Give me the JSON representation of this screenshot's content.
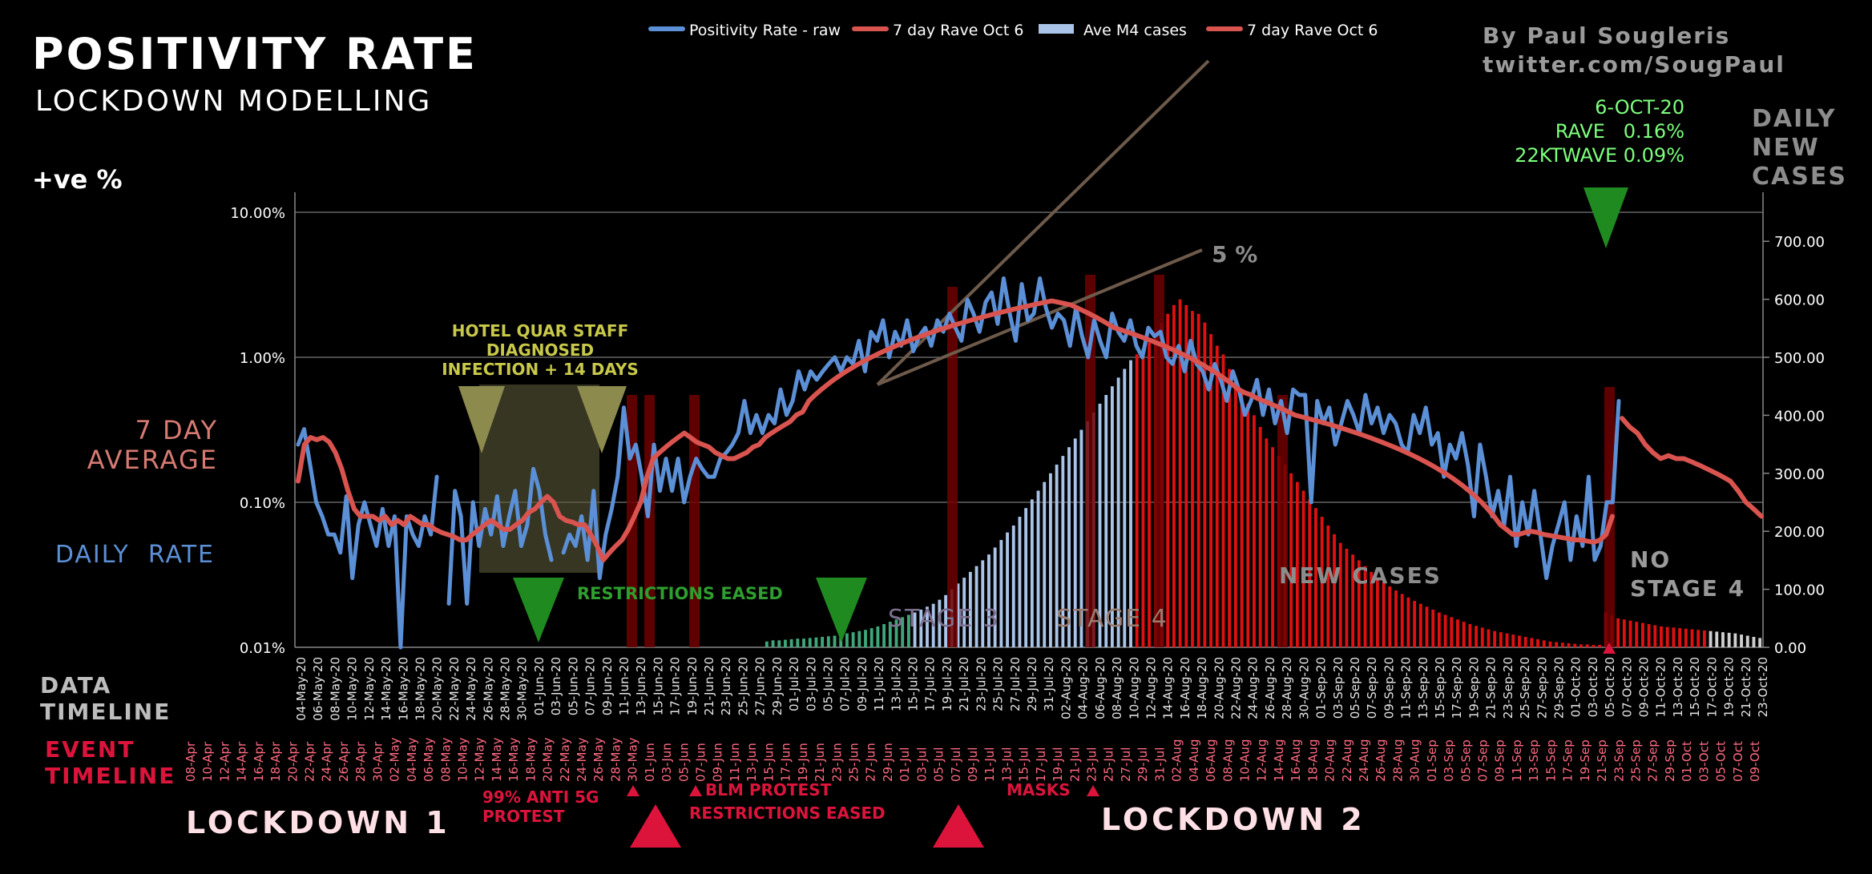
{
  "header": {
    "title": "POSITIVITY RATE",
    "subtitle": "LOCKDOWN MODELLING",
    "y_left_title": "+ve %",
    "credit_line1": "By Paul Sougleris",
    "credit_line2": "twitter.com/SougPaul"
  },
  "legend": [
    {
      "label": "Positivity Rate - raw",
      "color": "#5b8fd6"
    },
    {
      "label": "7 day Rave Oct 6",
      "color": "#d9534f"
    },
    {
      "label": "Ave M4 cases",
      "color": "#a9c4e8"
    },
    {
      "label": "7 day Rave Oct 6",
      "color": "#d9534f"
    }
  ],
  "side_labels": {
    "seven_day": [
      "7 DAY",
      "AVERAGE"
    ],
    "daily_rate": "DAILY  RATE",
    "daily_new_cases": [
      "DAILY",
      "NEW",
      "CASES"
    ],
    "data_timeline": [
      "DATA",
      "TIMELINE"
    ],
    "event_timeline": [
      "EVENT",
      "TIMELINE"
    ]
  },
  "stats": {
    "date": "6-OCT-20",
    "rave": "RAVE   0.16%",
    "ktwave": "22KTWAVE 0.09%"
  },
  "annotations": {
    "hotel": [
      "HOTEL QUAR STAFF",
      "DIAGNOSED",
      "INFECTION + 14 DAYS"
    ],
    "restrictions_eased": "RESTRICTIONS EASED",
    "stage3": "STAGE 3",
    "stage4": "STAGE 4",
    "new_cases": "NEW CASES",
    "no_stage4": [
      "NO",
      "STAGE 4"
    ],
    "five_pct": "5 %",
    "anti5g": [
      "99% ANTI 5G",
      "PROTEST"
    ],
    "blm": "BLM PROTEST",
    "restrictions_eased2": "RESTRICTIONS EASED",
    "masks": "MASKS",
    "lockdown1": "LOCKDOWN 1",
    "lockdown2": "LOCKDOWN 2"
  },
  "colors": {
    "blue": "#5b8fd6",
    "red": "#d9534f",
    "green": "#3fa67a",
    "olive": "#a8a53f",
    "event_red": "#dc143c",
    "grid": "#777777",
    "stats_green": "#7dff7d"
  },
  "chart_data": {
    "type": "line",
    "title": "POSITIVITY RATE",
    "ylabel_left": "+ve %",
    "ylabel_right": "DAILY NEW CASES",
    "y_left_scale": "log",
    "y_left_ticks": [
      "10.00%",
      "1.00%",
      "0.10%",
      "0.01%"
    ],
    "ylim_left": [
      0.01,
      10
    ],
    "y_right_ticks": [
      "700.00",
      "600.00",
      "500.00",
      "400.00",
      "300.00",
      "200.00",
      "100.00",
      "0.00"
    ],
    "ylim_right": [
      0,
      750
    ],
    "data_timeline_start": "04-May-20",
    "data_timeline": [
      "04-May-20",
      "06-May-20",
      "08-May-20",
      "10-May-20",
      "12-May-20",
      "14-May-20",
      "16-May-20",
      "18-May-20",
      "20-May-20",
      "22-May-20",
      "24-May-20",
      "26-May-20",
      "28-May-20",
      "30-May-20",
      "01-Jun-20",
      "03-Jun-20",
      "05-Jun-20",
      "07-Jun-20",
      "09-Jun-20",
      "11-Jun-20",
      "13-Jun-20",
      "15-Jun-20",
      "17-Jun-20",
      "19-Jun-20",
      "21-Jun-20",
      "23-Jun-20",
      "25-Jun-20",
      "27-Jun-20",
      "29-Jun-20",
      "01-Jul-20",
      "03-Jul-20",
      "05-Jul-20",
      "07-Jul-20",
      "09-Jul-20",
      "11-Jul-20",
      "13-Jul-20",
      "15-Jul-20",
      "17-Jul-20",
      "19-Jul-20",
      "21-Jul-20",
      "23-Jul-20",
      "25-Jul-20",
      "27-Jul-20",
      "29-Jul-20",
      "31-Jul-20",
      "02-Aug-20",
      "04-Aug-20",
      "06-Aug-20",
      "08-Aug-20",
      "10-Aug-20",
      "12-Aug-20",
      "14-Aug-20",
      "16-Aug-20",
      "18-Aug-20",
      "20-Aug-20",
      "22-Aug-20",
      "24-Aug-20",
      "26-Aug-20",
      "28-Aug-20",
      "30-Aug-20",
      "01-Sep-20",
      "03-Sep-20",
      "05-Sep-20",
      "07-Sep-20",
      "09-Sep-20",
      "11-Sep-20",
      "13-Sep-20",
      "15-Sep-20",
      "17-Sep-20",
      "19-Sep-20",
      "21-Sep-20",
      "23-Sep-20",
      "25-Sep-20",
      "27-Sep-20",
      "29-Sep-20",
      "01-Oct-20",
      "03-Oct-20",
      "05-Oct-20",
      "07-Oct-20",
      "09-Oct-20",
      "11-Oct-20",
      "13-Oct-20",
      "15-Oct-20",
      "17-Oct-20",
      "19-Oct-20",
      "21-Oct-20",
      "23-Oct-20"
    ],
    "event_timeline": [
      "08-Apr",
      "10-Apr",
      "12-Apr",
      "14-Apr",
      "16-Apr",
      "18-Apr",
      "20-Apr",
      "22-Apr",
      "24-Apr",
      "26-Apr",
      "28-Apr",
      "30-Apr",
      "02-May",
      "04-May",
      "06-May",
      "08-May",
      "10-May",
      "12-May",
      "14-May",
      "16-May",
      "18-May",
      "20-May",
      "22-May",
      "24-May",
      "26-May",
      "28-May",
      "30-May",
      "01-Jun",
      "03-Jun",
      "05-Jun",
      "07-Jun",
      "09-Jun",
      "11-Jun",
      "13-Jun",
      "15-Jun",
      "17-Jun",
      "19-Jun",
      "21-Jun",
      "23-Jun",
      "25-Jun",
      "27-Jun",
      "29-Jun",
      "01-Jul",
      "03-Jul",
      "05-Jul",
      "07-Jul",
      "09-Jul",
      "11-Jul",
      "13-Jul",
      "15-Jul",
      "17-Jul",
      "19-Jul",
      "21-Jul",
      "23-Jul",
      "25-Jul",
      "27-Jul",
      "29-Jul",
      "31-Jul",
      "02-Aug",
      "04-Aug",
      "06-Aug",
      "08-Aug",
      "10-Aug",
      "12-Aug",
      "14-Aug",
      "16-Aug",
      "18-Aug",
      "20-Aug",
      "22-Aug",
      "24-Aug",
      "26-Aug",
      "28-Aug",
      "30-Aug",
      "01-Sep",
      "03-Sep",
      "05-Sep",
      "07-Sep",
      "09-Sep",
      "11-Sep",
      "13-Sep",
      "15-Sep",
      "17-Sep",
      "19-Sep",
      "21-Sep",
      "23-Sep",
      "25-Sep",
      "27-Sep",
      "29-Sep",
      "01-Oct",
      "03-Oct",
      "05-Oct",
      "07-Oct",
      "09-Oct"
    ],
    "series": [
      {
        "name": "Positivity Rate - raw",
        "axis": "left",
        "values": [
          0.25,
          0.32,
          0.18,
          0.1,
          0.08,
          0.06,
          0.06,
          0.045,
          0.11,
          0.03,
          0.07,
          0.1,
          0.07,
          0.05,
          0.09,
          0.05,
          0.08,
          0.01,
          0.08,
          0.06,
          0.05,
          0.08,
          0.06,
          0.15,
          null,
          0.02,
          0.12,
          0.08,
          0.02,
          0.1,
          0.05,
          0.09,
          0.06,
          0.11,
          0.05,
          0.08,
          0.12,
          0.05,
          0.07,
          0.17,
          0.12,
          0.06,
          0.04,
          null,
          0.045,
          0.06,
          0.05,
          0.08,
          0.04,
          0.12,
          0.03,
          0.06,
          0.09,
          0.15,
          0.45,
          0.2,
          0.25,
          0.15,
          0.08,
          0.25,
          0.12,
          0.2,
          0.12,
          0.2,
          0.1,
          0.15,
          0.2,
          0.17,
          0.15,
          0.15,
          0.2,
          0.22,
          0.25,
          0.3,
          0.5,
          0.3,
          0.4,
          0.3,
          0.4,
          0.35,
          0.6,
          0.4,
          0.5,
          0.8,
          0.6,
          0.8,
          0.7,
          0.8,
          0.9,
          1.0,
          0.8,
          1.0,
          0.9,
          1.3,
          0.8,
          1.5,
          1.3,
          1.8,
          1.0,
          1.5,
          1.2,
          1.8,
          1.1,
          1.4,
          1.6,
          1.2,
          1.8,
          1.5,
          2.0,
          1.6,
          1.3,
          2.5,
          2.0,
          1.5,
          2.4,
          2.8,
          1.7,
          3.5,
          2.0,
          1.3,
          3.2,
          1.8,
          2.0,
          3.5,
          2.2,
          1.6,
          2.0,
          1.8,
          1.2,
          2.2,
          1.4,
          1.0,
          1.8,
          1.3,
          1.0,
          2.0,
          1.5,
          1.3,
          1.8,
          1.2,
          1.0,
          1.6,
          1.4,
          1.5,
          1.0,
          0.9,
          1.2,
          0.8,
          1.3,
          0.9,
          0.8,
          0.6,
          0.9,
          0.7,
          0.5,
          0.8,
          0.6,
          0.4,
          0.5,
          0.7,
          0.4,
          0.6,
          0.35,
          0.5,
          0.3,
          0.6,
          0.55,
          0.55,
          0.1,
          0.5,
          0.35,
          0.45,
          0.25,
          0.35,
          0.5,
          0.4,
          0.3,
          0.55,
          0.35,
          0.45,
          0.3,
          0.4,
          0.35,
          0.25,
          0.22,
          0.4,
          0.3,
          0.45,
          0.25,
          0.3,
          0.15,
          0.25,
          0.2,
          0.3,
          0.18,
          0.08,
          0.25,
          0.15,
          0.08,
          0.12,
          0.07,
          0.15,
          0.05,
          0.1,
          0.06,
          0.12,
          0.06,
          0.03,
          0.05,
          0.07,
          0.1,
          0.04,
          0.08,
          0.05,
          0.15,
          0.04,
          0.05,
          0.1,
          0.1,
          0.5
        ]
      },
      {
        "name": "7 day Rave Oct 6",
        "axis": "left",
        "values": [
          0.14,
          0.25,
          0.28,
          0.27,
          0.28,
          0.26,
          0.22,
          0.17,
          0.12,
          0.09,
          0.08,
          0.08,
          0.08,
          0.075,
          0.08,
          0.07,
          0.075,
          0.07,
          0.08,
          0.075,
          0.07,
          0.07,
          0.065,
          0.062,
          0.06,
          0.058,
          0.055,
          0.055,
          0.06,
          0.065,
          0.07,
          0.075,
          0.07,
          0.065,
          0.065,
          0.07,
          0.075,
          0.085,
          0.09,
          0.1,
          0.11,
          0.1,
          0.08,
          0.075,
          0.073,
          0.07,
          0.07,
          0.06,
          0.05,
          0.04,
          0.045,
          0.05,
          0.055,
          0.065,
          0.08,
          0.1,
          0.15,
          0.2,
          0.22,
          0.24,
          0.26,
          0.28,
          0.3,
          0.28,
          0.26,
          0.25,
          0.24,
          0.22,
          0.21,
          0.2,
          0.2,
          0.21,
          0.22,
          0.24,
          0.25,
          0.28,
          0.3,
          0.32,
          0.34,
          0.36,
          0.4,
          0.42,
          0.5,
          0.55,
          0.6,
          0.65,
          0.7,
          0.75,
          0.8,
          0.85,
          0.9,
          0.95,
          1.0,
          1.05,
          1.1,
          1.15,
          1.2,
          1.25,
          1.3,
          1.35,
          1.4,
          1.45,
          1.5,
          1.55,
          1.6,
          1.65,
          1.7,
          1.75,
          1.8,
          1.85,
          1.9,
          1.95,
          2.0,
          2.05,
          2.1,
          2.15,
          2.2,
          2.25,
          2.3,
          2.35,
          2.4,
          2.45,
          2.4,
          2.35,
          2.3,
          2.2,
          2.1,
          2.0,
          1.9,
          1.8,
          1.7,
          1.6,
          1.55,
          1.5,
          1.45,
          1.4,
          1.35,
          1.3,
          1.25,
          1.2,
          1.15,
          1.1,
          1.05,
          1.0,
          0.95,
          0.9,
          0.85,
          0.8,
          0.75,
          0.7,
          0.65,
          0.6,
          0.57,
          0.55,
          0.52,
          0.5,
          0.48,
          0.46,
          0.44,
          0.42,
          0.4,
          0.39,
          0.38,
          0.37,
          0.36,
          0.35,
          0.34,
          0.33,
          0.32,
          0.31,
          0.3,
          0.29,
          0.28,
          0.27,
          0.26,
          0.25,
          0.24,
          0.23,
          0.22,
          0.21,
          0.2,
          0.19,
          0.18,
          0.17,
          0.16,
          0.15,
          0.14,
          0.13,
          0.12,
          0.11,
          0.1,
          0.09,
          0.08,
          0.07,
          0.065,
          0.06,
          0.06,
          0.062,
          0.063,
          0.062,
          0.06,
          0.059,
          0.058,
          0.057,
          0.056,
          0.055,
          0.055,
          0.054,
          0.053,
          0.055,
          0.06,
          0.08
        ]
      },
      {
        "name": "7 day Rave Oct 6",
        "axis": "left",
        "values": [
          0.38,
          0.33,
          0.3,
          0.25,
          0.22,
          0.2,
          0.21,
          0.2,
          0.2,
          0.19,
          0.18,
          0.17,
          0.16,
          0.15,
          0.14,
          0.12,
          0.1,
          0.09,
          0.08
        ]
      },
      {
        "name": "Ave M4 cases",
        "axis": "right",
        "values": [
          0,
          0,
          0,
          0,
          0,
          0,
          0,
          0,
          0,
          0,
          0,
          0,
          0,
          0,
          0,
          0,
          0,
          0,
          0,
          0,
          0,
          0,
          0,
          0,
          0,
          0,
          0,
          0,
          0,
          0,
          0,
          0,
          0,
          0,
          0,
          0,
          0,
          0,
          0,
          0,
          0,
          0,
          0,
          0,
          0,
          0,
          0,
          0,
          0,
          0,
          0,
          0,
          0,
          0,
          0,
          0,
          0,
          0,
          0,
          0,
          0,
          0,
          0,
          0,
          0,
          0,
          0,
          0,
          0,
          0,
          0,
          0,
          0,
          0,
          0,
          0,
          10,
          12,
          12,
          13,
          14,
          15,
          15,
          16,
          17,
          18,
          19,
          20,
          22,
          24,
          26,
          28,
          30,
          33,
          36,
          40,
          44,
          48,
          52,
          56,
          60,
          65,
          70,
          75,
          82,
          90,
          100,
          110,
          120,
          130,
          140,
          150,
          160,
          172,
          185,
          198,
          210,
          225,
          240,
          255,
          270,
          285,
          300,
          315,
          330,
          345,
          360,
          375,
          390,
          405,
          420,
          435,
          450,
          465,
          480,
          495,
          505,
          515,
          525,
          540,
          560,
          575,
          590,
          600,
          590,
          580,
          575,
          560,
          540,
          520,
          505,
          480,
          460,
          440,
          420,
          400,
          380,
          360,
          345,
          330,
          315,
          300,
          285,
          270,
          255,
          240,
          225,
          210,
          195,
          180,
          170,
          160,
          150,
          140,
          130,
          120,
          112,
          105,
          98,
          92,
          86,
          80,
          75,
          70,
          65,
          60,
          56,
          52,
          48,
          44,
          40,
          37,
          34,
          31,
          28,
          26,
          24,
          22,
          20,
          18,
          16,
          14,
          12,
          10,
          9,
          8,
          7,
          6,
          5,
          5,
          4,
          4,
          60,
          55,
          50,
          48,
          46,
          44,
          42,
          40,
          38,
          36,
          35,
          34,
          33,
          32,
          31,
          30,
          29,
          28,
          27,
          26,
          25,
          24,
          22,
          20,
          18,
          16
        ]
      }
    ],
    "legend_placement": "top-center"
  }
}
